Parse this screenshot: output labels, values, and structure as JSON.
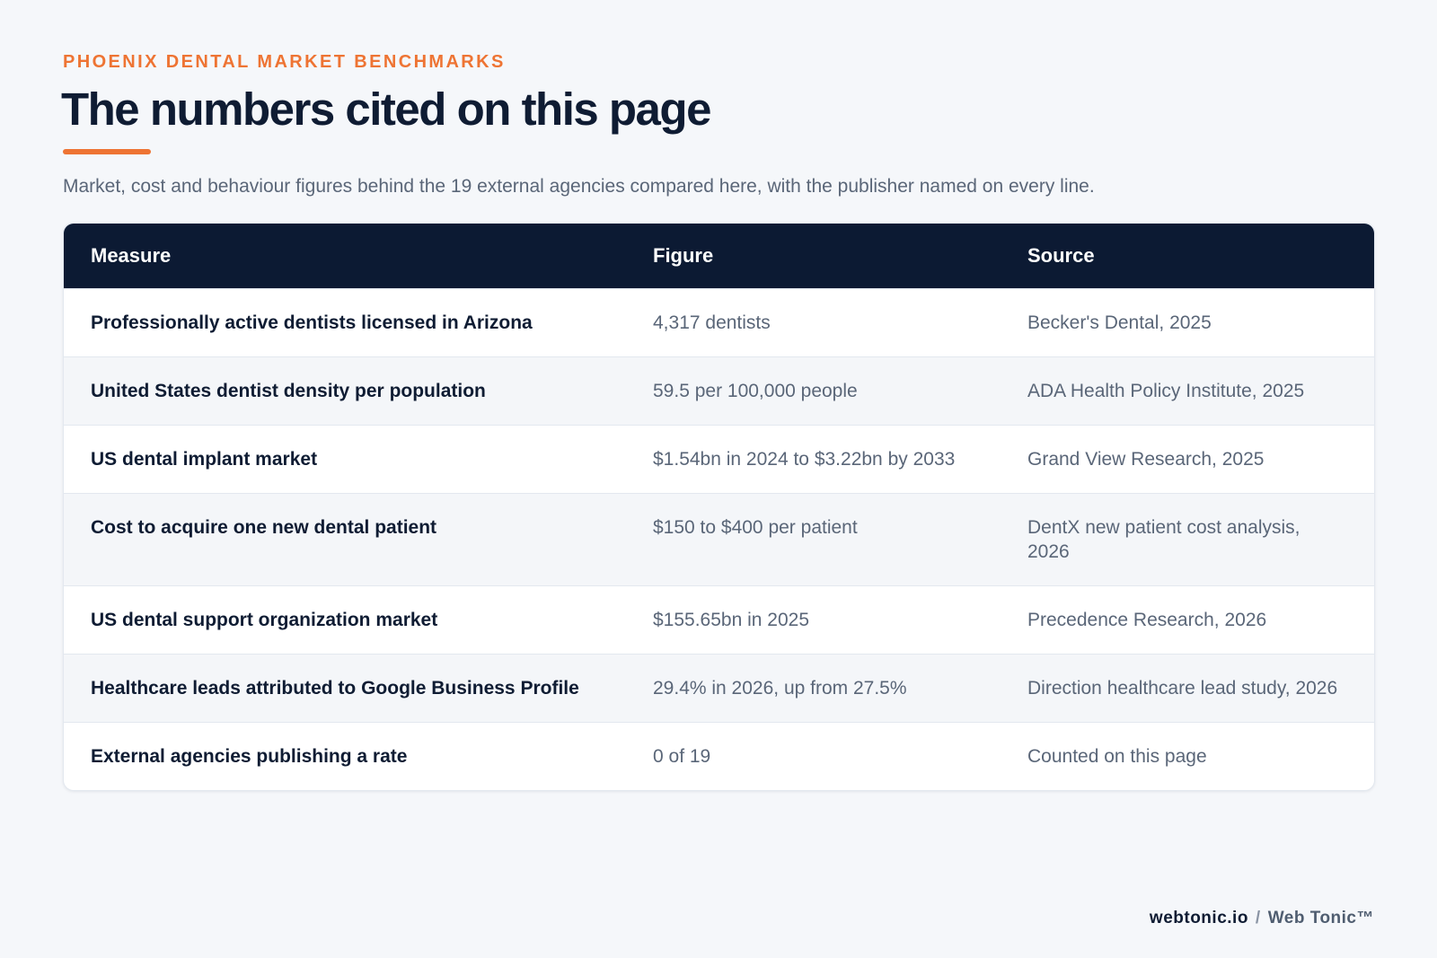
{
  "header": {
    "eyebrow": "PHOENIX DENTAL MARKET BENCHMARKS",
    "title": "The numbers cited on this page",
    "subtitle": "Market, cost and behaviour figures behind the 19 external agencies compared here, with the publisher named on every line."
  },
  "table": {
    "columns": [
      "Measure",
      "Figure",
      "Source"
    ],
    "rows": [
      [
        "Professionally active dentists licensed in Arizona",
        "4,317 dentists",
        "Becker's Dental, 2025"
      ],
      [
        "United States dentist density per population",
        "59.5 per 100,000 people",
        "ADA Health Policy Institute, 2025"
      ],
      [
        "US dental implant market",
        "$1.54bn in 2024 to $3.22bn by 2033",
        "Grand View Research, 2025"
      ],
      [
        "Cost to acquire one new dental patient",
        "$150 to $400 per patient",
        "DentX new patient cost analysis, 2026"
      ],
      [
        "US dental support organization market",
        "$155.65bn in 2025",
        "Precedence Research, 2026"
      ],
      [
        "Healthcare leads attributed to Google Business Profile",
        "29.4% in 2026, up from 27.5%",
        "Direction healthcare lead study, 2026"
      ],
      [
        "External agencies publishing a rate",
        "0 of 19",
        "Counted on this page"
      ]
    ]
  },
  "footer": {
    "site": "webtonic.io",
    "separator": "/",
    "brand": "Web Tonic™"
  }
}
